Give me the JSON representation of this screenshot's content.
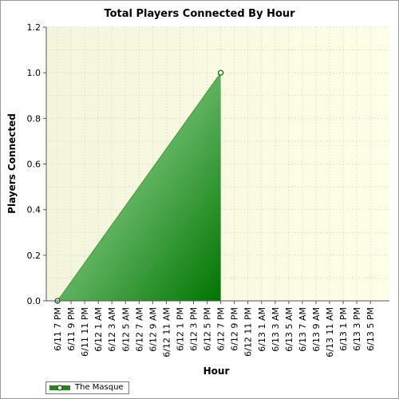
{
  "chart_data": {
    "type": "area",
    "title": "Total Players Connected By Hour",
    "xlabel": "Hour",
    "ylabel": "Players Connected",
    "categories": [
      "6/11 7 PM",
      "6/11 9 PM",
      "6/11 11 PM",
      "6/12 1 AM",
      "6/12 3 AM",
      "6/12 5 AM",
      "6/12 7 AM",
      "6/12 9 AM",
      "6/12 11 AM",
      "6/12 1 PM",
      "6/12 3 PM",
      "6/12 5 PM",
      "6/12 7 PM",
      "6/12 9 PM",
      "6/12 11 PM",
      "6/13 1 AM",
      "6/13 3 AM",
      "6/13 5 AM",
      "6/13 7 AM",
      "6/13 9 AM",
      "6/13 11 AM",
      "6/13 1 PM",
      "6/13 3 PM",
      "6/13 5 PM"
    ],
    "yticks": [
      "0.0",
      "0.2",
      "0.4",
      "0.6",
      "0.8",
      "1.0",
      "1.2"
    ],
    "ylim": [
      0,
      1.2
    ],
    "grid": true,
    "legend_position": "bottom-left",
    "series": [
      {
        "name": "The Masque",
        "points": [
          {
            "x": "6/11 7 PM",
            "y": 0
          },
          {
            "x": "6/12 7 PM",
            "y": 1
          }
        ],
        "color": "#008000"
      }
    ]
  }
}
